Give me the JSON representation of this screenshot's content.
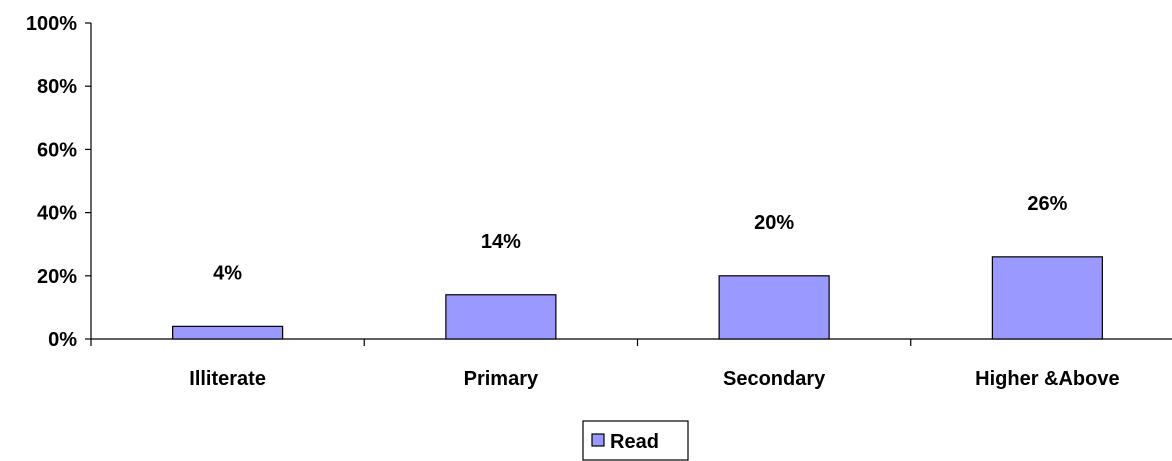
{
  "chart_data": {
    "type": "bar",
    "categories": [
      "Illiterate",
      "Primary",
      "Secondary",
      "Higher &Above"
    ],
    "series": [
      {
        "name": "Read",
        "values": [
          4,
          14,
          20,
          26
        ],
        "labels": [
          "4%",
          "14%",
          "20%",
          "26%"
        ]
      }
    ],
    "y_ticks": [
      "0%",
      "20%",
      "40%",
      "60%",
      "80%",
      "100%"
    ],
    "ylim": [
      0,
      100
    ],
    "ystep": 20,
    "grid": false,
    "legend_position": "bottom-center",
    "colors": {
      "bar_fill": "#9999ff",
      "bar_stroke": "#000000",
      "axis": "#000000"
    }
  }
}
